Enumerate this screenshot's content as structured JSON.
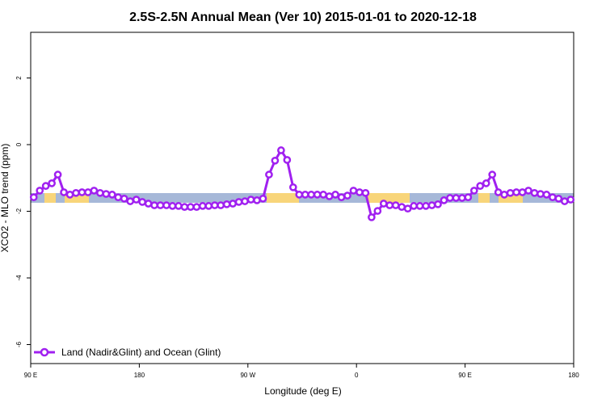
{
  "chart_data": {
    "type": "line",
    "title": "2.5S-2.5N Annual Mean (Ver 10)   2015-01-01 to 2020-12-18",
    "x_label": "Longitude (deg E)",
    "y_label": "XCO2 - MLO trend (ppm)",
    "x": [
      92.5,
      97.5,
      102.5,
      107.5,
      112.5,
      117.5,
      122.5,
      127.5,
      132.5,
      137.5,
      142.5,
      147.5,
      152.5,
      157.5,
      162.5,
      167.5,
      172.5,
      177.5,
      182.5,
      187.5,
      192.5,
      197.5,
      202.5,
      207.5,
      212.5,
      217.5,
      222.5,
      227.5,
      232.5,
      237.5,
      242.5,
      247.5,
      252.5,
      257.5,
      262.5,
      267.5,
      272.5,
      277.5,
      282.5,
      287.5,
      292.5,
      297.5,
      302.5,
      307.5,
      312.5,
      317.5,
      322.5,
      327.5,
      332.5,
      337.5,
      342.5,
      347.5,
      352.5,
      357.5,
      362.5,
      367.5,
      372.5,
      377.5,
      382.5,
      387.5,
      392.5,
      397.5,
      402.5,
      407.5,
      412.5,
      417.5,
      422.5,
      427.5,
      432.5,
      437.5,
      442.5,
      447.5,
      452.5,
      457.5,
      462.5,
      467.5,
      472.5,
      477.5,
      482.5,
      487.5,
      492.5,
      497.5,
      502.5,
      507.5,
      512.5,
      517.5,
      522.5,
      527.5,
      532.5,
      537.5
    ],
    "series": [
      {
        "name": "Land (Nadir&Glint) and Ocean (Glint)",
        "color": "#a020f0",
        "values": [
          -1.58,
          -1.38,
          -1.24,
          -1.16,
          -0.9,
          -1.43,
          -1.5,
          -1.45,
          -1.43,
          -1.43,
          -1.38,
          -1.45,
          -1.48,
          -1.5,
          -1.58,
          -1.62,
          -1.7,
          -1.65,
          -1.72,
          -1.77,
          -1.82,
          -1.82,
          -1.82,
          -1.84,
          -1.84,
          -1.87,
          -1.87,
          -1.87,
          -1.84,
          -1.84,
          -1.82,
          -1.82,
          -1.79,
          -1.77,
          -1.72,
          -1.7,
          -1.65,
          -1.67,
          -1.62,
          -0.9,
          -0.48,
          -0.17,
          -0.46,
          -1.28,
          -1.5,
          -1.5,
          -1.5,
          -1.5,
          -1.5,
          -1.55,
          -1.5,
          -1.58,
          -1.53,
          -1.38,
          -1.43,
          -1.45,
          -2.18,
          -1.99,
          -1.77,
          -1.82,
          -1.82,
          -1.87,
          -1.92,
          -1.84,
          -1.84,
          -1.84,
          -1.82,
          -1.79,
          -1.67,
          -1.6,
          -1.6,
          -1.6,
          -1.58,
          -1.38,
          -1.24,
          -1.16,
          -0.9,
          -1.43,
          -1.5,
          -1.45,
          -1.43,
          -1.43,
          -1.38,
          -1.45,
          -1.48,
          -1.5,
          -1.58,
          -1.62,
          -1.7,
          -1.65
        ]
      }
    ],
    "xlim": [
      90,
      540
    ],
    "xticks": [
      {
        "value": 90,
        "label": "90 E"
      },
      180,
      {
        "value": 270,
        "label": "90 W"
      },
      {
        "value": 360,
        "label": "0"
      },
      {
        "value": 450,
        "label": "90 E"
      },
      {
        "value": 540,
        "label": "180"
      }
    ],
    "ylim": [
      -6.57,
      3.37
    ],
    "yticks": [
      -6,
      -4,
      -2,
      0,
      2
    ],
    "legend": "bottom-left"
  }
}
